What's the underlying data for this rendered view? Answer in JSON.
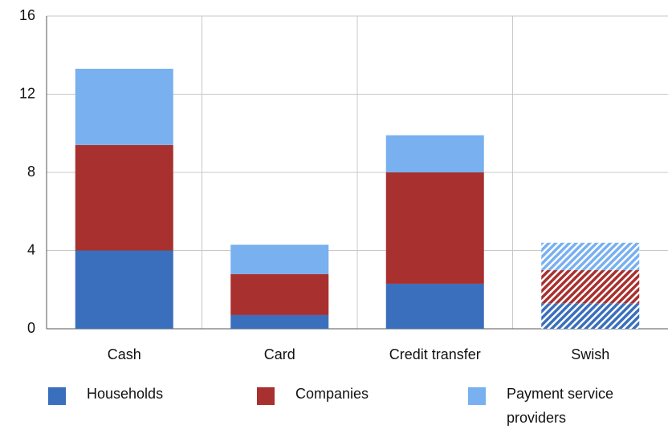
{
  "chart_data": {
    "type": "stacked_bar",
    "categories": [
      "Cash",
      "Card",
      "Credit transfer",
      "Swish"
    ],
    "series": [
      {
        "name": "Households",
        "color": "#3a6fbd",
        "values": [
          4.0,
          0.7,
          2.3,
          1.3
        ]
      },
      {
        "name": "Companies",
        "color": "#a8302e",
        "values": [
          5.4,
          2.1,
          5.7,
          1.7
        ]
      },
      {
        "name": "Payment service providers",
        "color": "#78b0f0",
        "values": [
          3.9,
          1.5,
          1.9,
          1.4
        ]
      }
    ],
    "hatched": [
      false,
      false,
      false,
      true
    ],
    "ylim": [
      0,
      16
    ],
    "yticks": [
      0,
      4,
      8,
      12,
      16
    ],
    "grid": true
  }
}
